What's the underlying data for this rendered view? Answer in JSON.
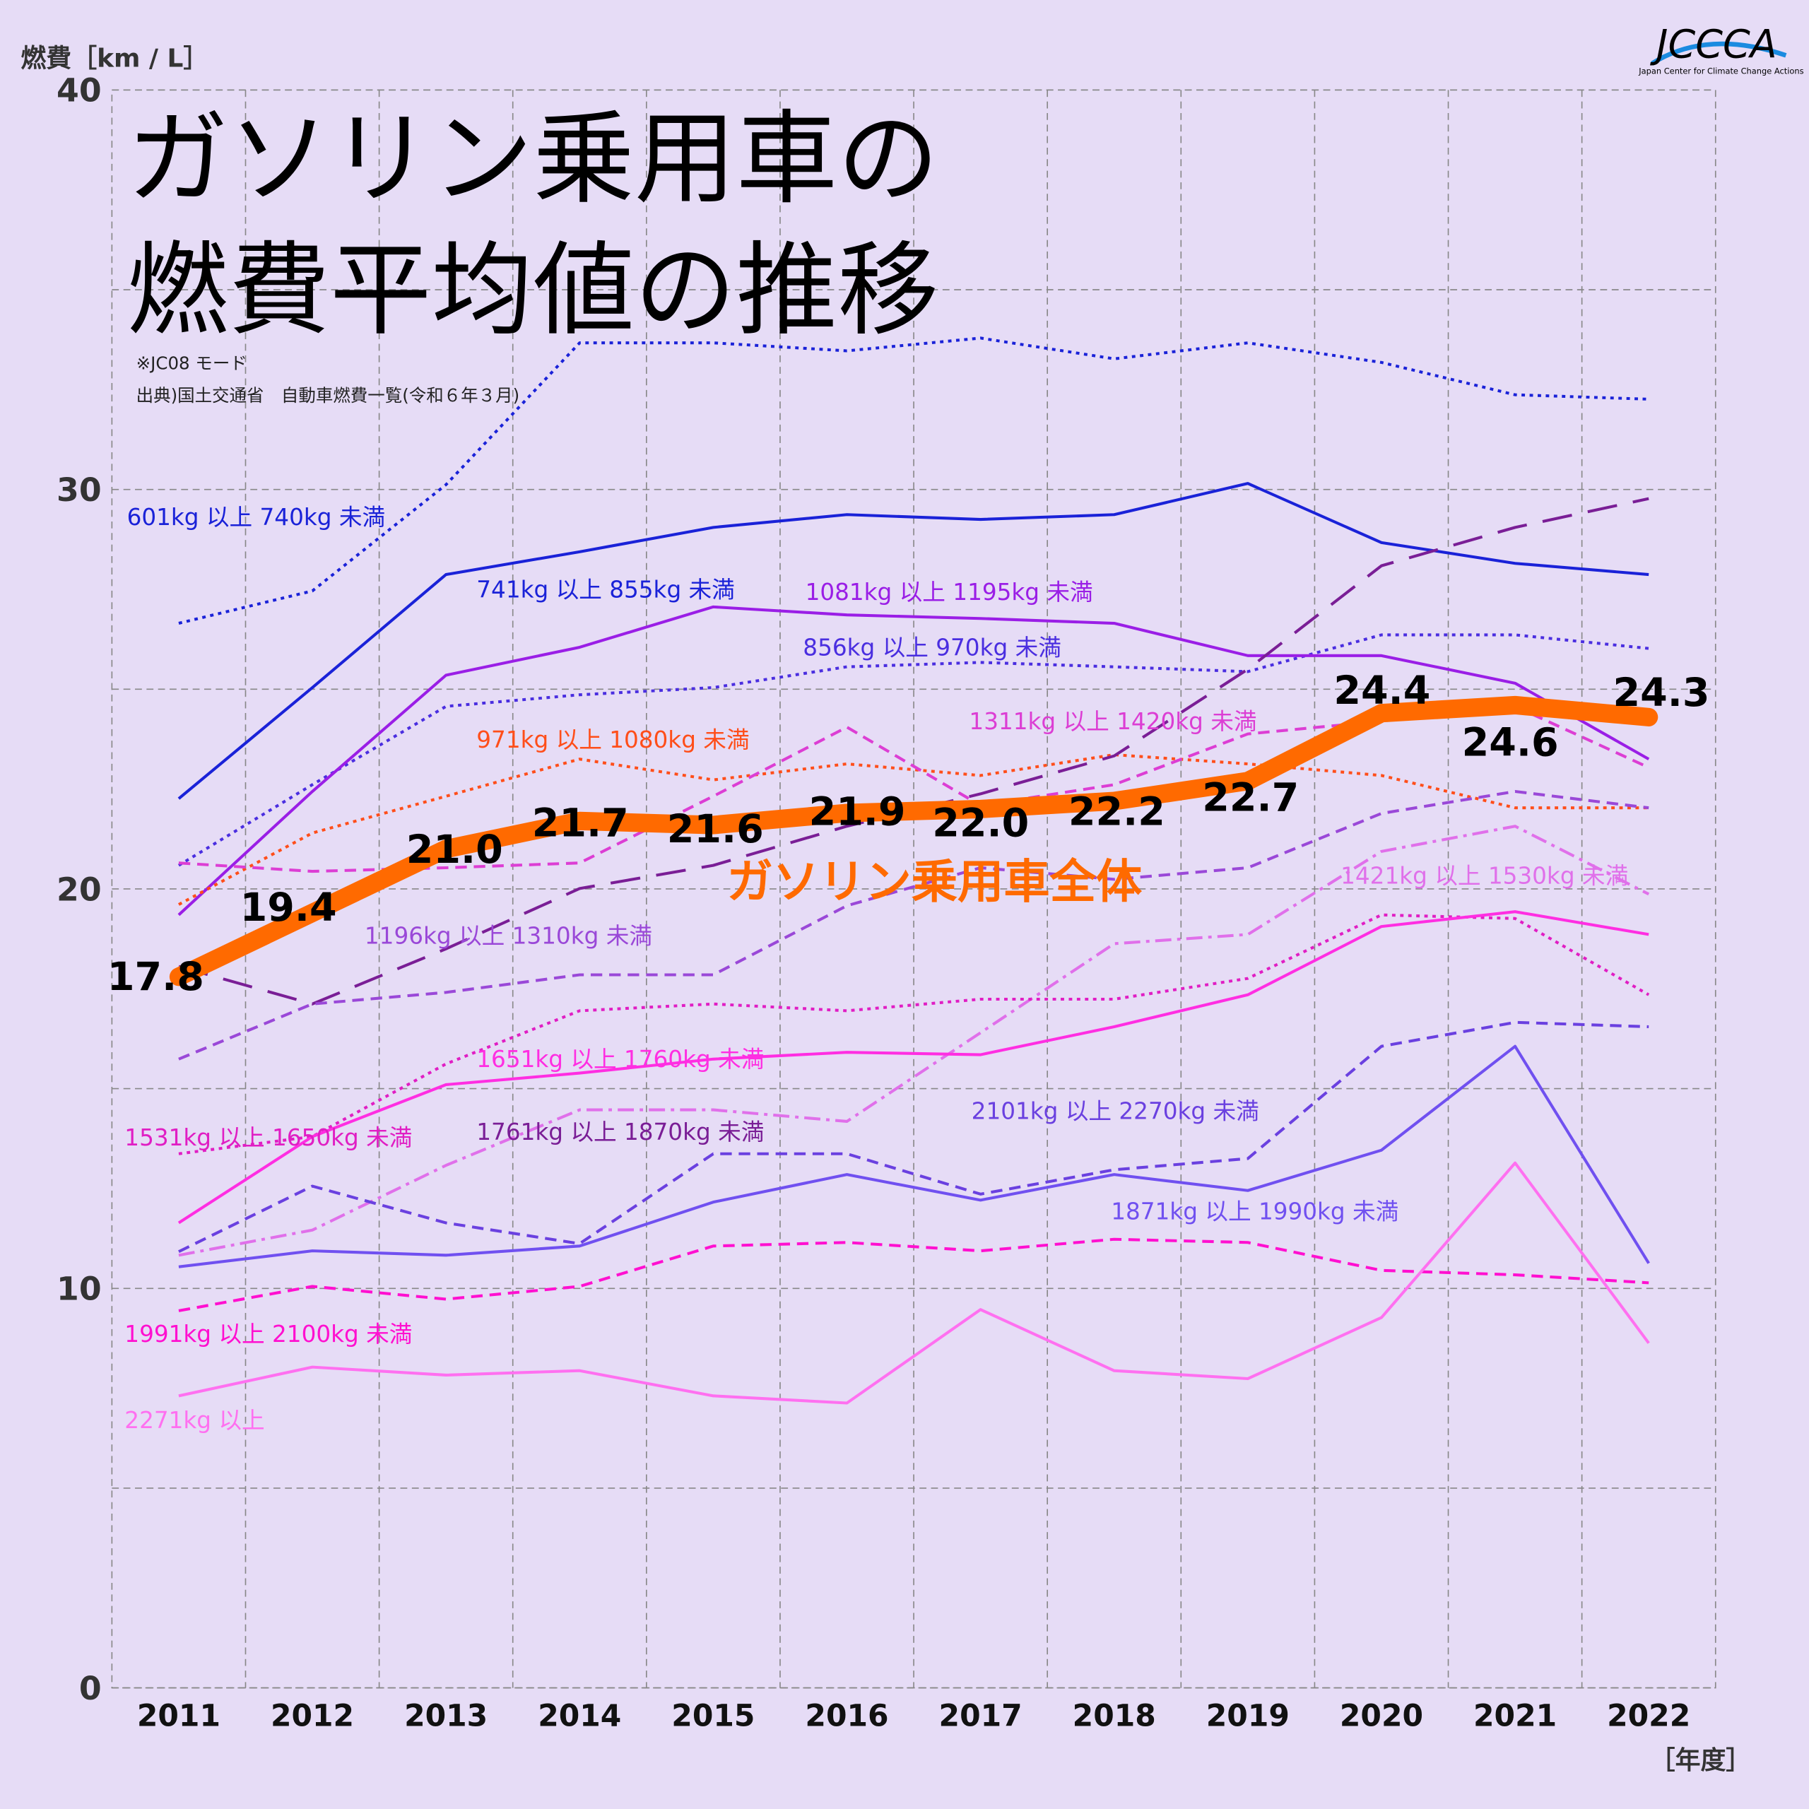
{
  "chart_data": {
    "type": "line",
    "title": [
      "ガソリン乗用車の",
      "燃費平均値の推移"
    ],
    "notes": [
      "※JC08 モード",
      "出典)国土交通省　自動車燃費一覧(令和６年３月)"
    ],
    "y_label": "燃費［km / L］",
    "x_label": "［年度］",
    "logo": "JCCCA",
    "logo_sub": "Japan Center for Climate Change Actions",
    "categories": [
      "2011",
      "2012",
      "2013",
      "2014",
      "2015",
      "2016",
      "2017",
      "2018",
      "2019",
      "2020",
      "2021",
      "2022"
    ],
    "ylim": [
      0,
      40
    ],
    "yticks": [
      0,
      10,
      20,
      30,
      40
    ],
    "grid": true,
    "series": [
      {
        "name": "601kg 以上 740kg 未満",
        "color": "#1a22d8",
        "dash": "dotted",
        "values": [
          26.65,
          27.46,
          30.12,
          33.67,
          33.67,
          33.47,
          33.79,
          33.27,
          33.67,
          33.18,
          32.37,
          32.26
        ]
      },
      {
        "name": "741kg 以上 855kg 未満",
        "color": "#1a22d8",
        "dash": "solid",
        "values": [
          22.26,
          25.04,
          27.87,
          28.44,
          29.05,
          29.37,
          29.25,
          29.37,
          30.15,
          28.67,
          28.15,
          27.87
        ]
      },
      {
        "name": "856kg 以上 970kg 未満",
        "color": "#4a2ee0",
        "dash": "dotted",
        "values": [
          20.59,
          22.61,
          24.57,
          24.86,
          25.04,
          25.56,
          25.67,
          25.56,
          25.44,
          26.36,
          26.36,
          26.02
        ]
      },
      {
        "name": "1081kg 以上 1195kg 未満",
        "color": "#9a1ee6",
        "dash": "solid",
        "values": [
          19.35,
          22.44,
          25.35,
          26.05,
          27.06,
          26.86,
          26.77,
          26.65,
          25.84,
          25.84,
          25.15,
          23.25
        ]
      },
      {
        "name": "971kg 以上 1080kg 未満",
        "color": "#ff4e1a",
        "dash": "dotted",
        "values": [
          19.61,
          21.4,
          22.32,
          23.25,
          22.73,
          23.13,
          22.84,
          23.36,
          23.13,
          22.84,
          22.03,
          22.03
        ]
      },
      {
        "name": "1311kg 以上 1420kg 未満",
        "color": "#dc3ed4",
        "dash": "dashed",
        "values": [
          20.65,
          20.44,
          20.53,
          20.65,
          22.32,
          24.05,
          22.09,
          22.61,
          23.88,
          24.2,
          24.57,
          23.04
        ]
      },
      {
        "name": "1761kg 以上 1870kg 未満",
        "color": "#7a1e96",
        "dash": "longdash",
        "values": [
          18.06,
          17.12,
          18.5,
          20.01,
          20.59,
          21.57,
          22.38,
          23.33,
          25.5,
          28.09,
          29.05,
          29.77
        ]
      },
      {
        "name": "1196kg 以上 1310kg 未満",
        "color": "#9a48d8",
        "dash": "dashed",
        "values": [
          15.74,
          17.12,
          17.41,
          17.85,
          17.85,
          19.58,
          20.53,
          20.24,
          20.53,
          21.89,
          22.44,
          22.03
        ]
      },
      {
        "name": "1421kg 以上 1530kg 未満",
        "color": "#e070ea",
        "dash": "dashdot",
        "values": [
          10.83,
          11.46,
          13.08,
          14.47,
          14.47,
          14.18,
          16.4,
          18.63,
          18.86,
          20.94,
          21.57,
          19.87
        ]
      },
      {
        "name": "1531kg 以上 1650kg 未満",
        "color": "#e01ec4",
        "dash": "dotted",
        "values": [
          13.37,
          13.8,
          15.62,
          16.95,
          17.12,
          16.95,
          17.24,
          17.24,
          17.76,
          19.35,
          19.26,
          17.35
        ]
      },
      {
        "name": "1651kg 以上 1760kg 未満",
        "color": "#ff2ee2",
        "dash": "solid",
        "values": [
          11.64,
          13.8,
          15.1,
          15.39,
          15.74,
          15.91,
          15.85,
          16.55,
          17.35,
          19.06,
          19.43,
          18.86
        ]
      },
      {
        "name": "1871kg 以上 1990kg 未満",
        "color": "#7050f0",
        "dash": "solid",
        "values": [
          10.54,
          10.94,
          10.83,
          11.06,
          12.16,
          12.85,
          12.21,
          12.85,
          12.45,
          13.46,
          16.06,
          10.63
        ]
      },
      {
        "name": "2101kg 以上 2270kg 未満",
        "color": "#6a40e0",
        "dash": "dashed",
        "values": [
          10.92,
          12.56,
          11.64,
          11.12,
          13.37,
          13.37,
          12.36,
          12.97,
          13.25,
          16.06,
          16.66,
          16.55
        ]
      },
      {
        "name": "1991kg 以上 2100kg 未満",
        "color": "#ff10d0",
        "dash": "dashed",
        "values": [
          9.44,
          10.05,
          9.73,
          10.05,
          11.06,
          11.15,
          10.94,
          11.23,
          11.15,
          10.45,
          10.34,
          10.14
        ]
      },
      {
        "name": "2271kg 以上",
        "color": "#ff70f0",
        "dash": "solid",
        "values": [
          7.31,
          8.03,
          7.83,
          7.94,
          7.31,
          7.13,
          9.47,
          7.94,
          7.74,
          9.27,
          13.14,
          8.63
        ]
      },
      {
        "name": "ガソリン乗用車全体",
        "color": "#ff6a00",
        "dash": "thick",
        "values": [
          17.8,
          19.4,
          21.0,
          21.7,
          21.6,
          21.9,
          22.0,
          22.2,
          22.7,
          24.4,
          24.6,
          24.3
        ],
        "value_labels": [
          "17.8",
          "19.4",
          "21.0",
          "21.7",
          "21.6",
          "21.9",
          "22.0",
          "22.2",
          "22.7",
          "24.4",
          "24.6",
          "24.3"
        ]
      }
    ]
  }
}
